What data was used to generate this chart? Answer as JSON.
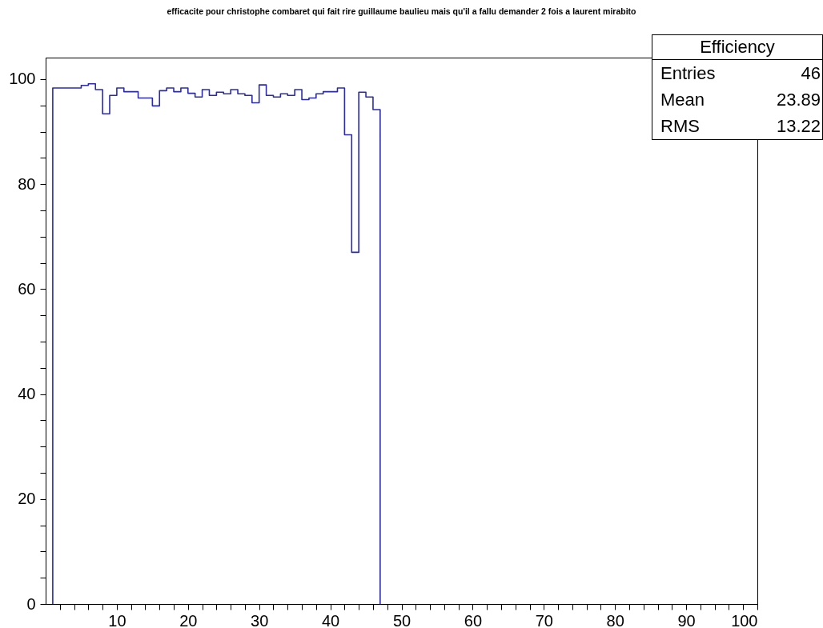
{
  "chart_data": {
    "type": "histogram",
    "title": "efficacite pour christophe combaret qui fait rire guillaume baulieu mais qu'il a fallu demander 2 fois a laurent mirabito",
    "bins": [
      1,
      2,
      3,
      4,
      5,
      6,
      7,
      8,
      9,
      10,
      11,
      12,
      13,
      14,
      15,
      16,
      17,
      18,
      19,
      20,
      21,
      22,
      23,
      24,
      25,
      26,
      27,
      28,
      29,
      30,
      31,
      32,
      33,
      34,
      35,
      36,
      37,
      38,
      39,
      40,
      41,
      42,
      43,
      44,
      45,
      46,
      47
    ],
    "values": [
      98.3,
      98.3,
      98.3,
      98.3,
      98.8,
      99.1,
      98.0,
      93.4,
      96.9,
      98.3,
      97.6,
      97.6,
      96.4,
      96.4,
      94.9,
      97.8,
      98.3,
      97.6,
      98.3,
      97.3,
      96.6,
      98.0,
      96.9,
      97.5,
      97.2,
      98.0,
      97.2,
      96.9,
      95.5,
      98.9,
      96.9,
      96.6,
      97.2,
      96.9,
      98.0,
      96.1,
      96.4,
      97.2,
      97.6,
      97.6,
      98.3,
      89.4,
      67.0,
      97.5,
      96.6,
      94.2
    ],
    "color": "#2b2ba8",
    "xlim": [
      0,
      100
    ],
    "xticks": [
      {
        "value": 2,
        "label": null
      },
      {
        "value": 4,
        "label": null
      },
      {
        "value": 6,
        "label": null
      },
      {
        "value": 8,
        "label": null
      },
      10,
      {
        "value": 12,
        "label": null
      },
      {
        "value": 14,
        "label": null
      },
      {
        "value": 16,
        "label": null
      },
      {
        "value": 18,
        "label": null
      },
      20,
      {
        "value": 22,
        "label": null
      },
      {
        "value": 24,
        "label": null
      },
      {
        "value": 26,
        "label": null
      },
      {
        "value": 28,
        "label": null
      },
      30,
      {
        "value": 32,
        "label": null
      },
      {
        "value": 34,
        "label": null
      },
      {
        "value": 36,
        "label": null
      },
      {
        "value": 38,
        "label": null
      },
      40,
      {
        "value": 42,
        "label": null
      },
      {
        "value": 44,
        "label": null
      },
      {
        "value": 46,
        "label": null
      },
      {
        "value": 48,
        "label": null
      },
      50,
      {
        "value": 52,
        "label": null
      },
      {
        "value": 54,
        "label": null
      },
      {
        "value": 56,
        "label": null
      },
      {
        "value": 58,
        "label": null
      },
      60,
      {
        "value": 62,
        "label": null
      },
      {
        "value": 64,
        "label": null
      },
      {
        "value": 66,
        "label": null
      },
      {
        "value": 68,
        "label": null
      },
      70,
      {
        "value": 72,
        "label": null
      },
      {
        "value": 74,
        "label": null
      },
      {
        "value": 76,
        "label": null
      },
      {
        "value": 78,
        "label": null
      },
      80,
      {
        "value": 82,
        "label": null
      },
      {
        "value": 84,
        "label": null
      },
      {
        "value": 86,
        "label": null
      },
      {
        "value": 88,
        "label": null
      },
      90,
      {
        "value": 92,
        "label": null
      },
      {
        "value": 94,
        "label": null
      },
      {
        "value": 96,
        "label": null
      },
      {
        "value": 98,
        "label": null
      },
      100
    ],
    "ylim": [
      0,
      104.1
    ],
    "yticks": [
      0,
      {
        "value": 5,
        "label": null
      },
      {
        "value": 10,
        "label": null
      },
      {
        "value": 15,
        "label": null
      },
      20,
      {
        "value": 25,
        "label": null
      },
      {
        "value": 30,
        "label": null
      },
      {
        "value": 35,
        "label": null
      },
      40,
      {
        "value": 45,
        "label": null
      },
      {
        "value": 50,
        "label": null
      },
      {
        "value": 55,
        "label": null
      },
      60,
      {
        "value": 65,
        "label": null
      },
      {
        "value": 70,
        "label": null
      },
      {
        "value": 75,
        "label": null
      },
      80,
      {
        "value": 85,
        "label": null
      },
      {
        "value": 90,
        "label": null
      },
      {
        "value": 95,
        "label": null
      },
      100
    ],
    "annotations": [
      "Efficiency",
      "Entries 46",
      "Mean 23.89",
      "RMS 13.22"
    ],
    "grid": false
  }
}
